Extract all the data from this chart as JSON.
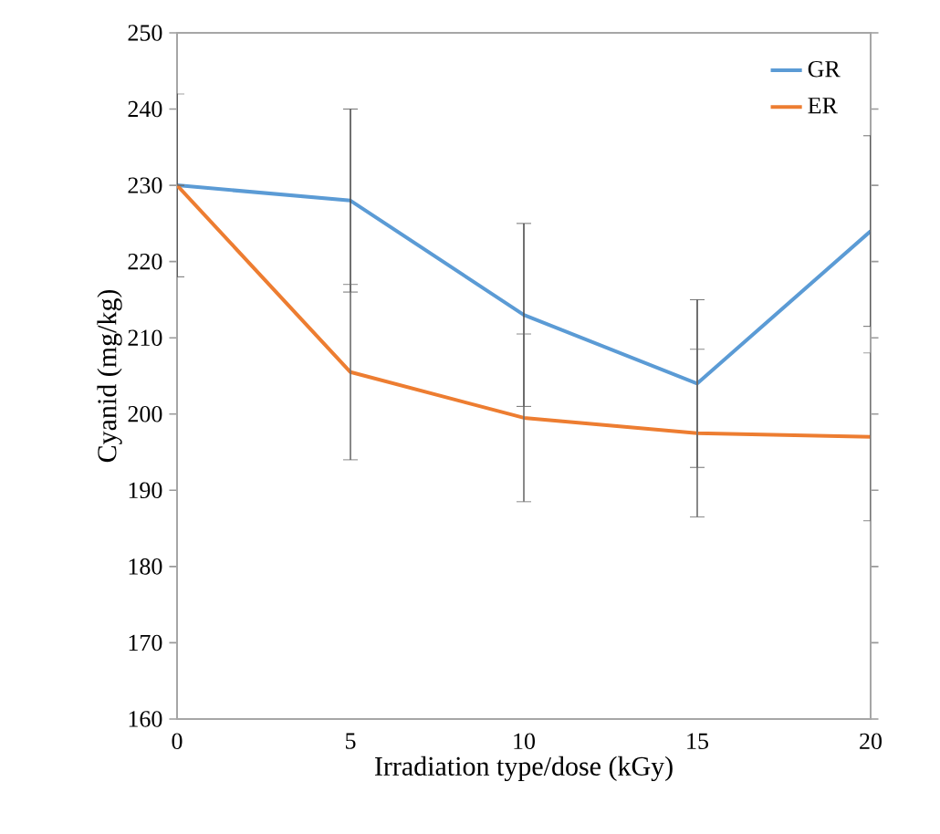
{
  "chart_data": {
    "type": "line",
    "xlabel": "Irradiation type/dose (kGy)",
    "ylabel": "Cyanid (mg/kg)",
    "x": [
      0,
      5,
      10,
      15,
      20
    ],
    "series": [
      {
        "name": "GR",
        "color": "#5b9bd5",
        "values": [
          230,
          228,
          213,
          204,
          224
        ],
        "errors": [
          12,
          12,
          12,
          11,
          12.5
        ]
      },
      {
        "name": "ER",
        "color": "#ed7d31",
        "values": [
          230,
          205.5,
          199.5,
          197.5,
          197
        ],
        "errors": [
          null,
          11.5,
          11,
          11,
          11
        ]
      }
    ],
    "xlim": [
      0,
      20
    ],
    "xticks": [
      0,
      5,
      10,
      15,
      20
    ],
    "ylim": [
      160,
      250
    ],
    "yticks": [
      160,
      170,
      180,
      190,
      200,
      210,
      220,
      230,
      240,
      250
    ],
    "grid": false,
    "legend": "top right",
    "marker": "none",
    "line_style": "solid"
  }
}
